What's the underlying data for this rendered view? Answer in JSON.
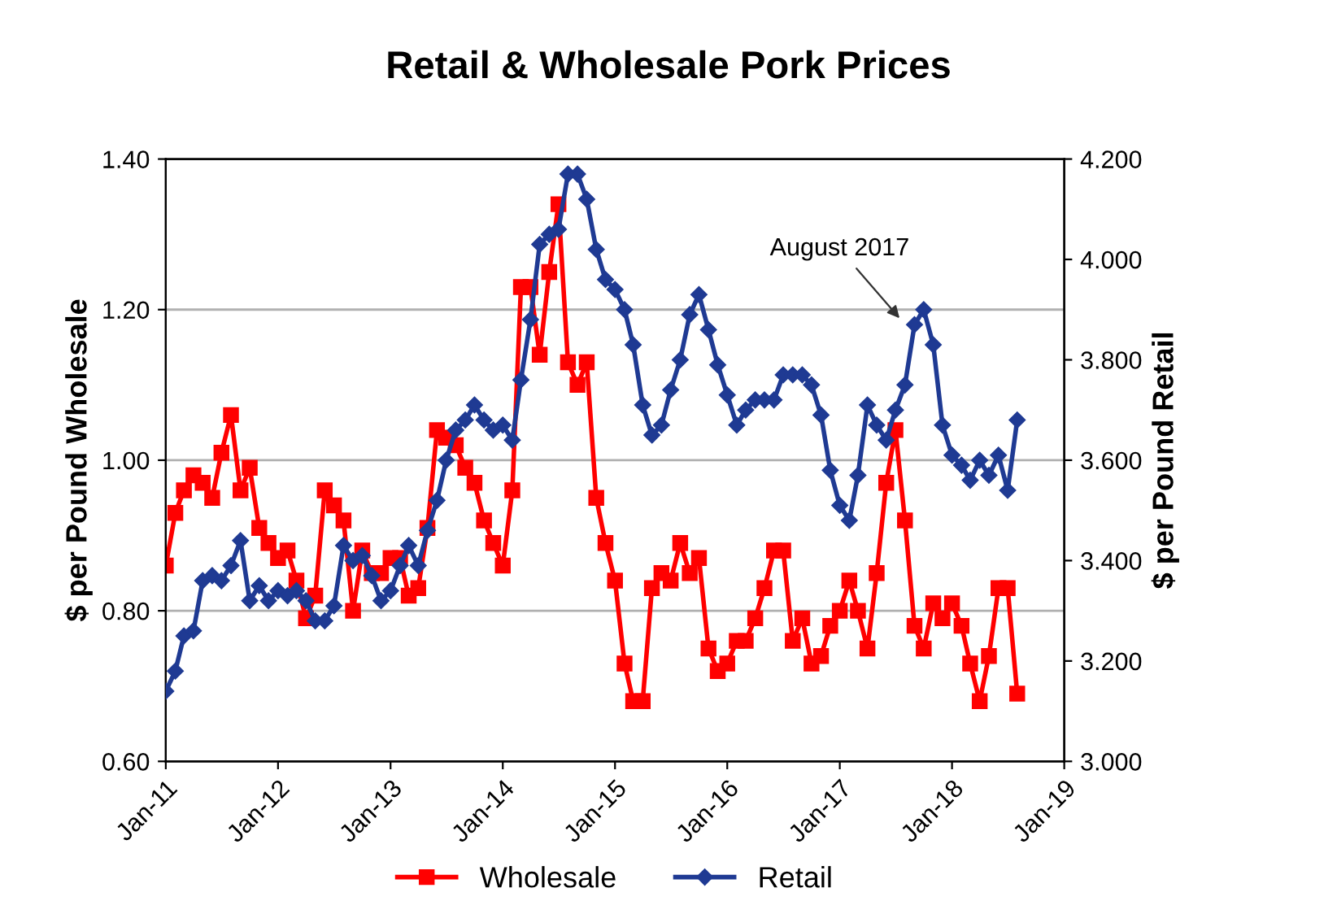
{
  "chart_data": {
    "type": "line",
    "title": "Retail & Wholesale Pork Prices",
    "ylabel": "$ per Pound Wholesale",
    "y2label": "$ per Pound Retail",
    "x": [
      "2011-01",
      "2011-02",
      "2011-03",
      "2011-04",
      "2011-05",
      "2011-06",
      "2011-07",
      "2011-08",
      "2011-09",
      "2011-10",
      "2011-11",
      "2011-12",
      "2012-01",
      "2012-02",
      "2012-03",
      "2012-04",
      "2012-05",
      "2012-06",
      "2012-07",
      "2012-08",
      "2012-09",
      "2012-10",
      "2012-11",
      "2012-12",
      "2013-01",
      "2013-02",
      "2013-03",
      "2013-04",
      "2013-05",
      "2013-06",
      "2013-07",
      "2013-08",
      "2013-09",
      "2013-10",
      "2013-11",
      "2013-12",
      "2014-01",
      "2014-02",
      "2014-03",
      "2014-04",
      "2014-05",
      "2014-06",
      "2014-07",
      "2014-08",
      "2014-09",
      "2014-10",
      "2014-11",
      "2014-12",
      "2015-01",
      "2015-02",
      "2015-03",
      "2015-04",
      "2015-05",
      "2015-06",
      "2015-07",
      "2015-08",
      "2015-09",
      "2015-10",
      "2015-11",
      "2015-12",
      "2016-01",
      "2016-02",
      "2016-03",
      "2016-04",
      "2016-05",
      "2016-06",
      "2016-07",
      "2016-08",
      "2016-09",
      "2016-10",
      "2016-11",
      "2016-12",
      "2017-01",
      "2017-02",
      "2017-03",
      "2017-04",
      "2017-05",
      "2017-06",
      "2017-07",
      "2017-08",
      "2017-09",
      "2017-10",
      "2017-11",
      "2017-12",
      "2018-01",
      "2018-02",
      "2018-03",
      "2018-04",
      "2018-05",
      "2018-06",
      "2018-07",
      "2018-08"
    ],
    "series": [
      {
        "name": "Wholesale",
        "color": "#ff0000",
        "marker": "square",
        "values": [
          0.86,
          0.93,
          0.96,
          0.98,
          0.97,
          0.95,
          1.01,
          1.06,
          0.96,
          0.99,
          0.91,
          0.89,
          0.87,
          0.88,
          0.84,
          0.79,
          0.82,
          0.96,
          0.94,
          0.92,
          0.8,
          0.88,
          0.85,
          0.85,
          0.87,
          0.87,
          0.82,
          0.83,
          0.91,
          1.04,
          1.03,
          1.02,
          0.99,
          0.97,
          0.92,
          0.89,
          0.86,
          0.96,
          1.23,
          1.23,
          1.14,
          1.25,
          1.34,
          1.13,
          1.1,
          1.13,
          0.95,
          0.89,
          0.84,
          0.73,
          0.68,
          0.68,
          0.83,
          0.85,
          0.84,
          0.89,
          0.85,
          0.87,
          0.75,
          0.72,
          0.73,
          0.76,
          0.76,
          0.79,
          0.83,
          0.88,
          0.88,
          0.76,
          0.79,
          0.73,
          0.74,
          0.78,
          0.8,
          0.84,
          0.8,
          0.75,
          0.85,
          0.97,
          1.04,
          0.92,
          0.78,
          0.75,
          0.81,
          0.79,
          0.81,
          0.78,
          0.73,
          0.68,
          0.74,
          0.83,
          0.83,
          0.69
        ]
      },
      {
        "name": "Retail",
        "color": "#1f3a93",
        "marker": "diamond",
        "axis": "y2",
        "values": [
          3.14,
          3.18,
          3.25,
          3.26,
          3.36,
          3.37,
          3.36,
          3.39,
          3.44,
          3.32,
          3.35,
          3.32,
          3.34,
          3.33,
          3.34,
          3.32,
          3.28,
          3.28,
          3.31,
          3.43,
          3.4,
          3.41,
          3.37,
          3.32,
          3.34,
          3.39,
          3.43,
          3.39,
          3.46,
          3.52,
          3.6,
          3.66,
          3.68,
          3.71,
          3.68,
          3.66,
          3.67,
          3.64,
          3.76,
          3.88,
          4.03,
          4.05,
          4.06,
          4.17,
          4.17,
          4.12,
          4.02,
          3.96,
          3.94,
          3.9,
          3.83,
          3.71,
          3.65,
          3.67,
          3.74,
          3.8,
          3.89,
          3.93,
          3.86,
          3.79,
          3.73,
          3.67,
          3.7,
          3.72,
          3.72,
          3.72,
          3.77,
          3.77,
          3.77,
          3.75,
          3.69,
          3.58,
          3.51,
          3.48,
          3.57,
          3.71,
          3.67,
          3.64,
          3.7,
          3.75,
          3.87,
          3.9,
          3.83,
          3.67,
          3.61,
          3.59,
          3.56,
          3.6,
          3.57,
          3.61,
          3.54,
          3.68
        ]
      }
    ],
    "xlim": [
      "2011-01",
      "2019-01"
    ],
    "xticks": [
      {
        "value": "2011-01",
        "label": "Jan-11"
      },
      {
        "value": "2012-01",
        "label": "Jan-12"
      },
      {
        "value": "2013-01",
        "label": "Jan-13"
      },
      {
        "value": "2014-01",
        "label": "Jan-14"
      },
      {
        "value": "2015-01",
        "label": "Jan-15"
      },
      {
        "value": "2016-01",
        "label": "Jan-16"
      },
      {
        "value": "2017-01",
        "label": "Jan-17"
      },
      {
        "value": "2018-01",
        "label": "Jan-18"
      },
      {
        "value": "2019-01",
        "label": "Jan-19"
      }
    ],
    "ylim": [
      0.6,
      1.4
    ],
    "yticks": [
      {
        "value": 0.6,
        "label": "0.60"
      },
      {
        "value": 0.8,
        "label": "0.80"
      },
      {
        "value": 1.0,
        "label": "1.00"
      },
      {
        "value": 1.2,
        "label": "1.20"
      },
      {
        "value": 1.4,
        "label": "1.40"
      }
    ],
    "y2lim": [
      3.0,
      4.2
    ],
    "y2ticks": [
      {
        "value": 3.0,
        "label": "3.000"
      },
      {
        "value": 3.2,
        "label": "3.200"
      },
      {
        "value": 3.4,
        "label": "3.400"
      },
      {
        "value": 3.6,
        "label": "3.600"
      },
      {
        "value": 3.8,
        "label": "3.800"
      },
      {
        "value": 4.0,
        "label": "4.000"
      },
      {
        "value": 4.2,
        "label": "4.200"
      }
    ],
    "grid": "y",
    "legend": "bottom",
    "line_style": "solid",
    "annotations": [
      "August 2017"
    ]
  }
}
